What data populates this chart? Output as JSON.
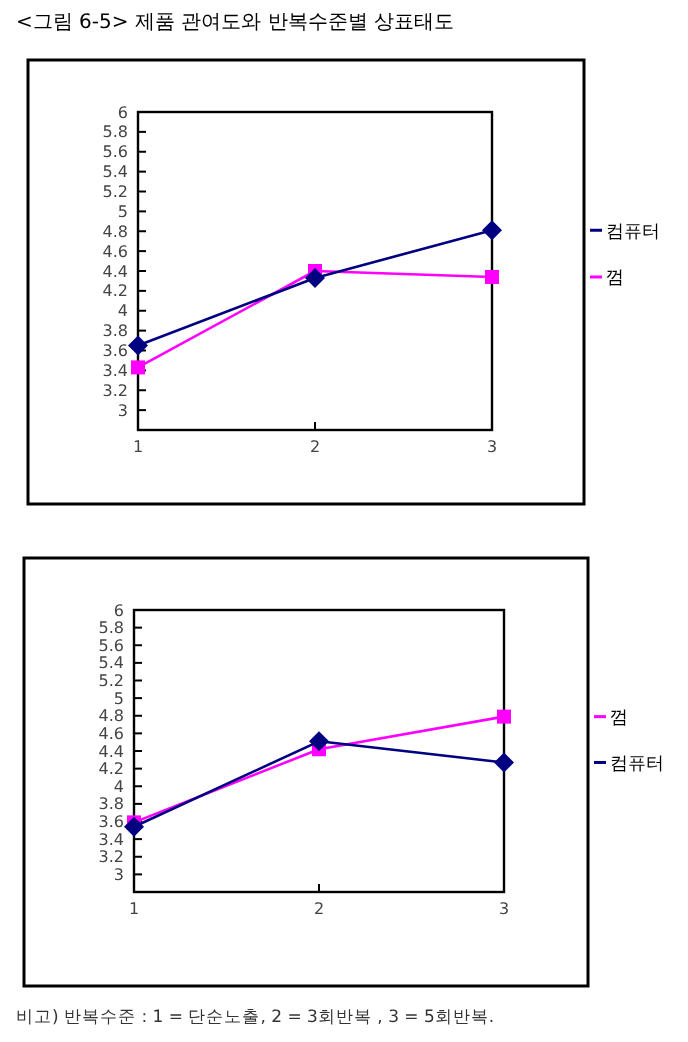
{
  "chart_data": [
    {
      "type": "line",
      "title": "<그림 6-5> 제품 관여도와 반복수준별 상표태도",
      "x": [
        1,
        2,
        3
      ],
      "xlim": [
        1,
        3
      ],
      "xticks": [
        1,
        2,
        3
      ],
      "ylim": [
        2.8,
        6
      ],
      "yticks": [
        3,
        3.2,
        3.4,
        3.6,
        3.8,
        4,
        4.2,
        4.4,
        4.6,
        4.8,
        5,
        5.2,
        5.4,
        5.6,
        5.8,
        6
      ],
      "legend": "right",
      "series": [
        {
          "name": "컴퓨터",
          "color": "#000080",
          "marker": "diamond",
          "values": [
            3.65,
            4.33,
            4.81
          ]
        },
        {
          "name": "껌",
          "color": "#ff00ff",
          "marker": "square",
          "values": [
            3.43,
            4.4,
            4.34
          ]
        }
      ]
    },
    {
      "type": "line",
      "x": [
        1,
        2,
        3
      ],
      "xlim": [
        1,
        3
      ],
      "xticks": [
        1,
        2,
        3
      ],
      "ylim": [
        2.8,
        6
      ],
      "yticks": [
        3,
        3.2,
        3.4,
        3.6,
        3.8,
        4,
        4.2,
        4.4,
        4.6,
        4.8,
        5,
        5.2,
        5.4,
        5.6,
        5.8,
        6
      ],
      "legend": "right",
      "annotations": [
        "비고) 반복수준 : 1 = 단순노출, 2 = 3회반복 , 3 = 5회반복."
      ],
      "series": [
        {
          "name": "컴퓨터",
          "color": "#000080",
          "marker": "diamond",
          "values": [
            3.54,
            4.51,
            4.27
          ]
        },
        {
          "name": "껌",
          "color": "#ff00ff",
          "marker": "square",
          "values": [
            3.59,
            4.42,
            4.79
          ]
        }
      ]
    }
  ]
}
